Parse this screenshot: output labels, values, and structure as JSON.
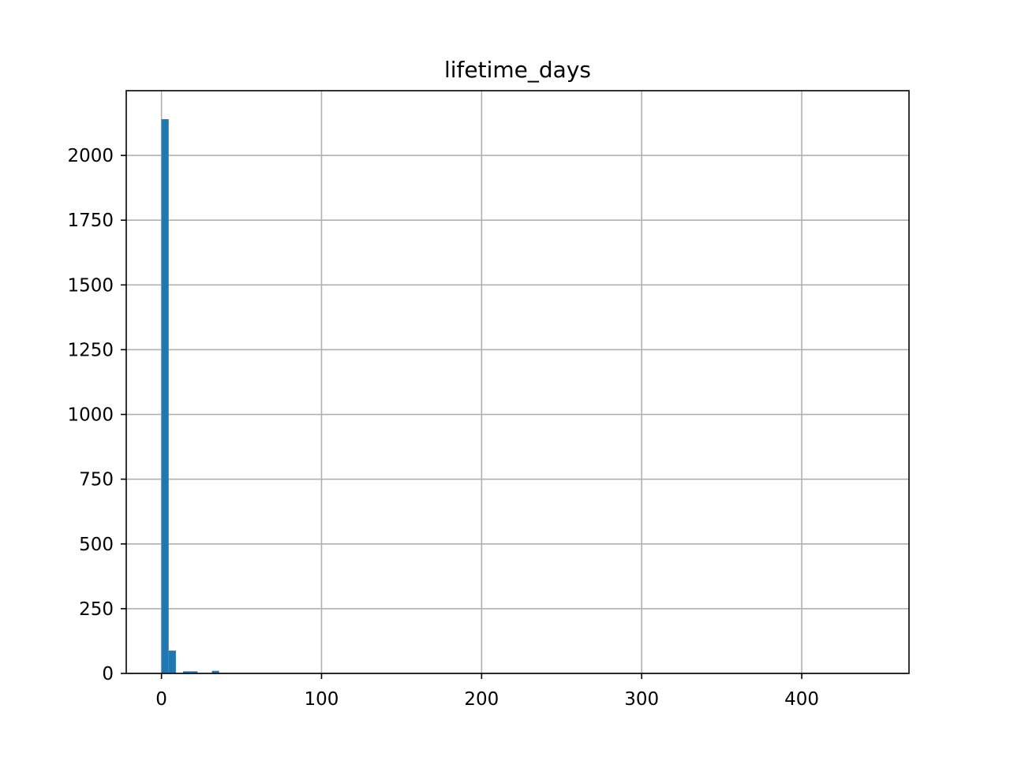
{
  "chart_data": {
    "type": "bar",
    "title": "lifetime_days",
    "xlabel": "",
    "ylabel": "",
    "xlim": [
      -22,
      467
    ],
    "ylim": [
      0,
      2250
    ],
    "xticks": [
      0,
      100,
      200,
      300,
      400
    ],
    "yticks": [
      0,
      250,
      500,
      750,
      1000,
      1250,
      1500,
      1750,
      2000
    ],
    "grid": true,
    "legend": "none",
    "bar_color": "#1f77b4",
    "grid_color": "#b0b0b0",
    "bins": [
      {
        "x0": 0.0,
        "x1": 4.5,
        "value": 2140
      },
      {
        "x0": 4.5,
        "x1": 9.0,
        "value": 88
      },
      {
        "x0": 9.0,
        "x1": 13.5,
        "value": 0
      },
      {
        "x0": 13.5,
        "x1": 18.0,
        "value": 8
      },
      {
        "x0": 18.0,
        "x1": 22.5,
        "value": 8
      },
      {
        "x0": 22.5,
        "x1": 27.0,
        "value": 0
      },
      {
        "x0": 27.0,
        "x1": 31.5,
        "value": 0
      },
      {
        "x0": 31.5,
        "x1": 36.0,
        "value": 10
      },
      {
        "x0": 36.0,
        "x1": 40.5,
        "value": 2
      },
      {
        "x0": 40.5,
        "x1": 45.0,
        "value": 1
      },
      {
        "x0": 45.0,
        "x1": 49.5,
        "value": 1
      },
      {
        "x0": 49.5,
        "x1": 54.0,
        "value": 1
      },
      {
        "x0": 63.0,
        "x1": 67.5,
        "value": 1
      },
      {
        "x0": 90.0,
        "x1": 94.5,
        "value": 1
      },
      {
        "x0": 441.0,
        "x1": 445.5,
        "value": 1
      }
    ]
  }
}
